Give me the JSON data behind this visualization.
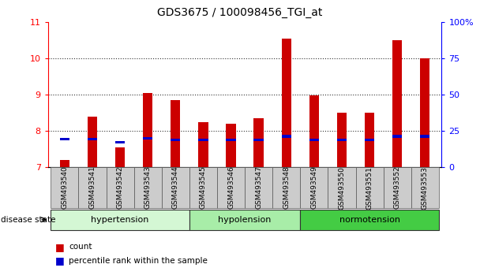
{
  "title": "GDS3675 / 100098456_TGI_at",
  "samples": [
    "GSM493540",
    "GSM493541",
    "GSM493542",
    "GSM493543",
    "GSM493544",
    "GSM493545",
    "GSM493546",
    "GSM493547",
    "GSM493548",
    "GSM493549",
    "GSM493550",
    "GSM493551",
    "GSM493552",
    "GSM493553"
  ],
  "count_values": [
    7.2,
    8.4,
    7.55,
    9.05,
    8.85,
    8.25,
    8.2,
    8.35,
    10.55,
    8.98,
    8.5,
    8.5,
    10.5,
    10.0
  ],
  "percentile_values": [
    7.75,
    7.74,
    7.65,
    7.77,
    7.72,
    7.72,
    7.72,
    7.72,
    7.82,
    7.72,
    7.72,
    7.72,
    7.82,
    7.82
  ],
  "ylim": [
    7,
    11
  ],
  "yticks": [
    7,
    8,
    9,
    10,
    11
  ],
  "right_yticks": [
    0,
    25,
    50,
    75,
    100
  ],
  "disease_groups": [
    {
      "label": "hypertension",
      "start": 0,
      "end": 4,
      "color": "#d4f7d4"
    },
    {
      "label": "hypolension",
      "start": 5,
      "end": 8,
      "color": "#a8eda8"
    },
    {
      "label": "normotension",
      "start": 9,
      "end": 13,
      "color": "#44cc44"
    }
  ],
  "bar_width": 0.35,
  "count_color": "#cc0000",
  "percentile_color": "#0000cc",
  "background_color": "#ffffff",
  "tick_label_bg": "#cccccc",
  "title_fontsize": 10,
  "axis_fontsize": 8,
  "label_fontsize": 6.5,
  "group_fontsize": 8,
  "legend_fontsize": 7.5
}
